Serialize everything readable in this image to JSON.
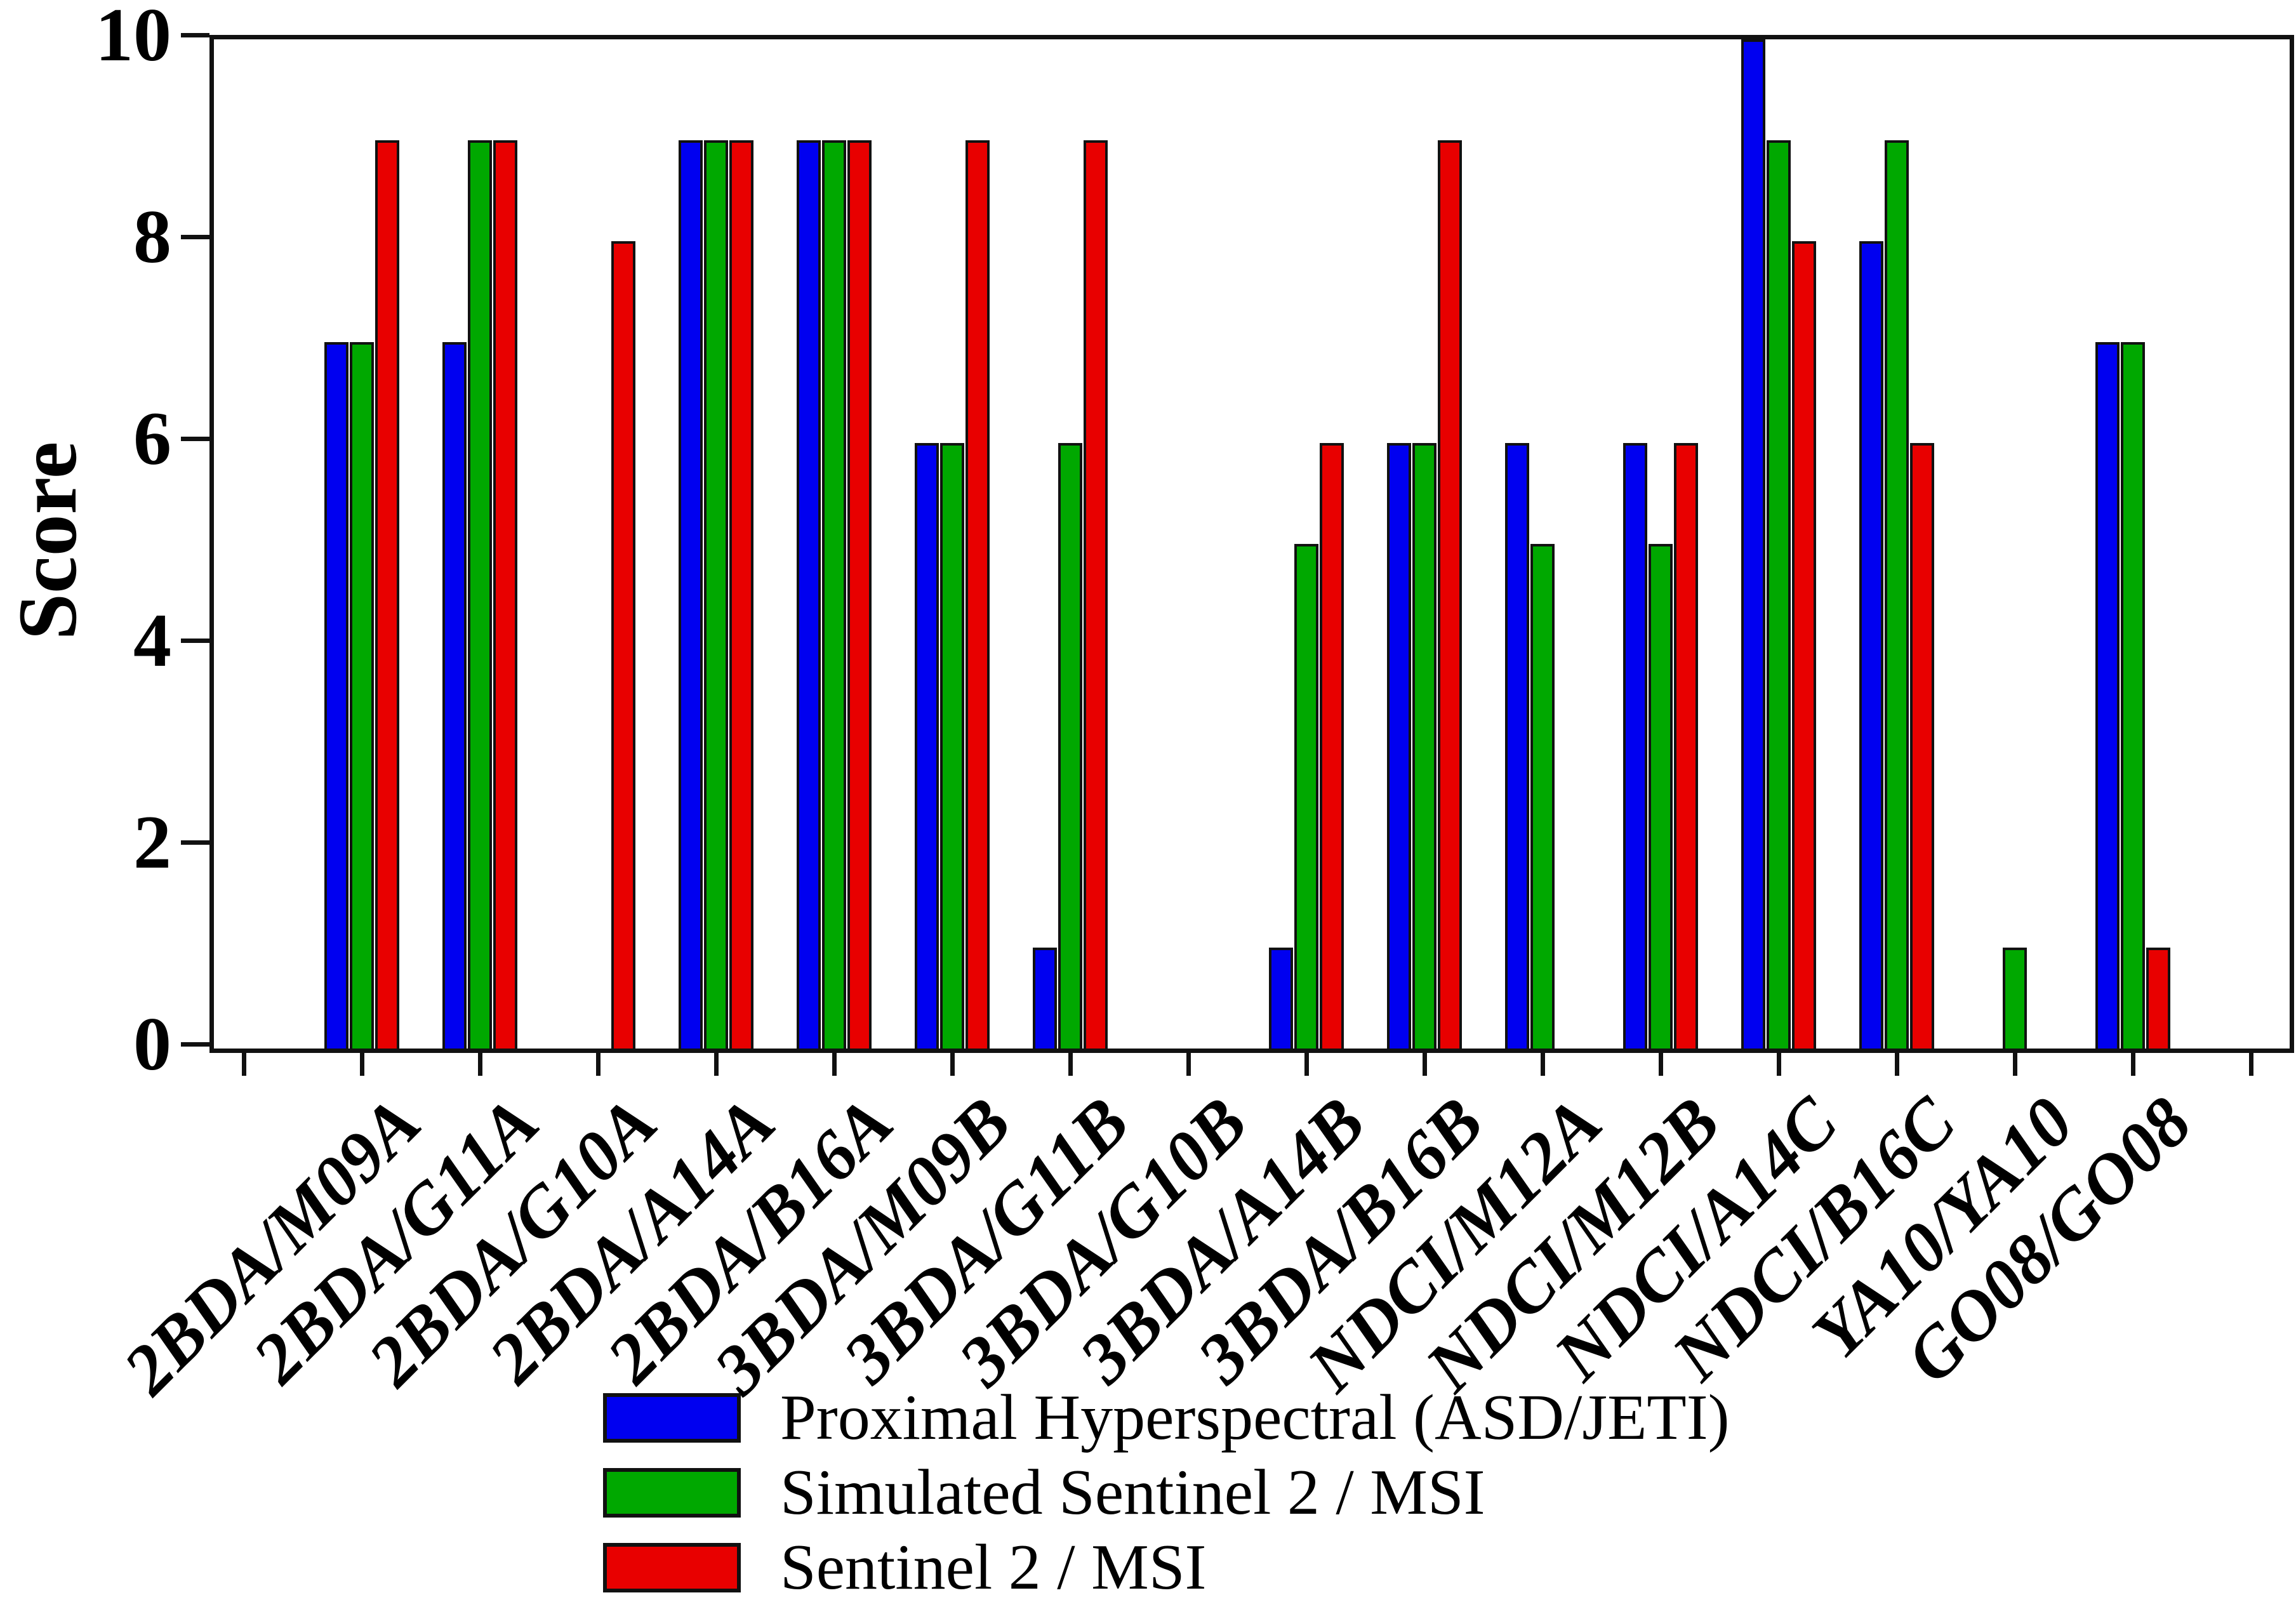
{
  "chart_data": {
    "type": "bar",
    "title": "",
    "xlabel": "",
    "ylabel": "Score",
    "ylim": [
      0,
      10
    ],
    "yticks": [
      0,
      2,
      4,
      6,
      8,
      10
    ],
    "grid": false,
    "legend_position": "bottom-center",
    "bar_outline_color": "#111111",
    "categories": [
      "2BDA/M09A",
      "2BDA/G11A",
      "2BDA/G10A",
      "2BDA/A14A",
      "2BDA/B16A",
      "3BDA/M09B",
      "3BDA/G11B",
      "3BDA/G10B",
      "3BDA/A14B",
      "3BDA/B16B",
      "NDCI/M12A",
      "NDCI/M12B",
      "NDCI/A14C",
      "NDCI/B16C",
      "YA10/YA10",
      "GO08/GO08"
    ],
    "series": [
      {
        "name": "Proximal Hyperspectral (ASD/JETI)",
        "color": "#0000f0",
        "values": [
          7,
          7,
          0,
          9,
          9,
          6,
          1,
          0,
          1,
          6,
          6,
          6,
          10,
          8,
          0,
          7
        ]
      },
      {
        "name": "Simulated Sentinel 2 / MSI",
        "color": "#00a800",
        "values": [
          7,
          9,
          0,
          9,
          9,
          6,
          6,
          0,
          5,
          6,
          5,
          5,
          9,
          9,
          1,
          7
        ]
      },
      {
        "name": "Sentinel 2 / MSI",
        "color": "#e80000",
        "values": [
          9,
          9,
          8,
          9,
          9,
          9,
          9,
          0,
          6,
          9,
          0,
          6,
          8,
          6,
          0,
          1
        ]
      }
    ]
  }
}
